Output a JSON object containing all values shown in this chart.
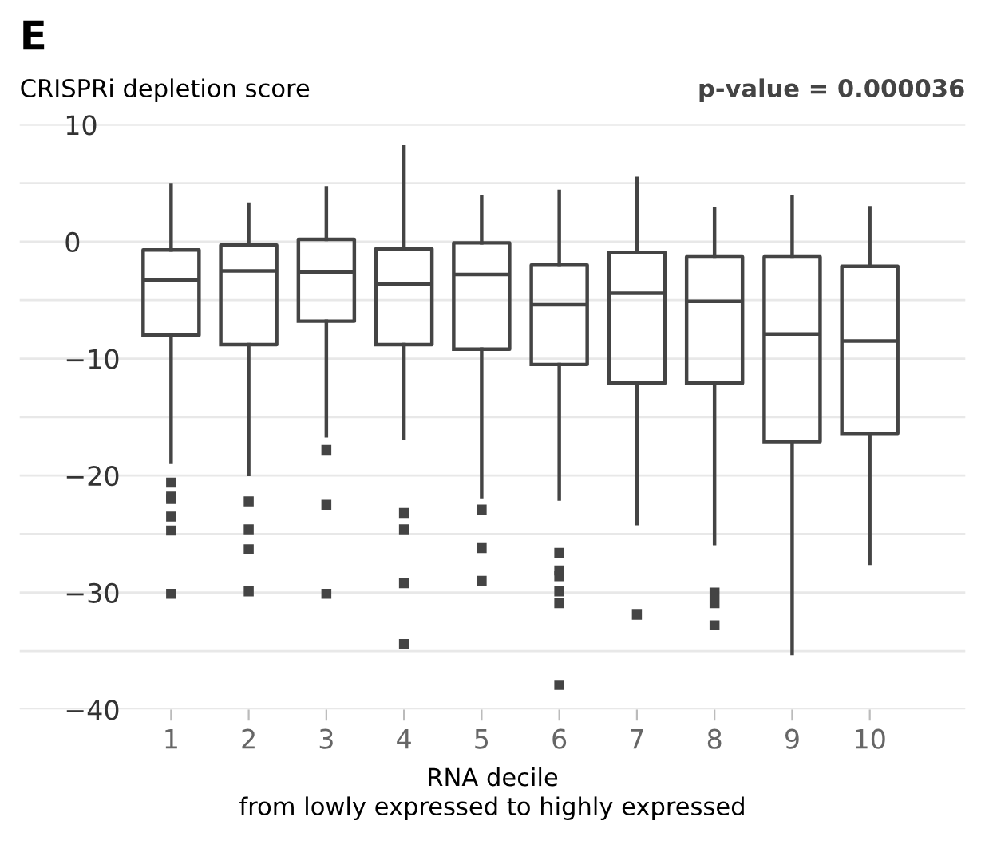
{
  "chart_data": {
    "type": "box",
    "title": "E",
    "ylabel": "CRISPRi depletion score",
    "xlabel": "RNA decile\nfrom lowly expressed to highly expressed",
    "annotations": [
      "p-value = 0.000036"
    ],
    "categories": [
      "1",
      "2",
      "3",
      "4",
      "5",
      "6",
      "7",
      "8",
      "9",
      "10"
    ],
    "boxes": [
      {
        "low": -18.8,
        "q1": -8.0,
        "median": -3.3,
        "q3": -0.7,
        "high": 4.8,
        "outliers": [
          -20.6,
          -21.8,
          -22.0,
          -23.5,
          -24.7,
          -30.1
        ]
      },
      {
        "low": -19.9,
        "q1": -8.8,
        "median": -2.5,
        "q3": -0.3,
        "high": 3.2,
        "outliers": [
          -22.2,
          -24.6,
          -26.3,
          -29.9
        ]
      },
      {
        "low": -16.6,
        "q1": -6.8,
        "median": -2.6,
        "q3": 0.2,
        "high": 4.6,
        "outliers": [
          -17.8,
          -22.5,
          -30.1
        ]
      },
      {
        "low": -16.8,
        "q1": -8.8,
        "median": -3.6,
        "q3": -0.6,
        "high": 8.1,
        "outliers": [
          -23.2,
          -24.6,
          -29.2,
          -34.4
        ]
      },
      {
        "low": -21.8,
        "q1": -9.2,
        "median": -2.8,
        "q3": -0.1,
        "high": 3.8,
        "outliers": [
          -22.9,
          -26.2,
          -29.0
        ]
      },
      {
        "low": -22.0,
        "q1": -10.5,
        "median": -5.4,
        "q3": -2.0,
        "high": 4.3,
        "outliers": [
          -26.6,
          -28.1,
          -28.6,
          -29.9,
          -30.9,
          -37.9
        ]
      },
      {
        "low": -24.1,
        "q1": -12.1,
        "median": -4.4,
        "q3": -0.9,
        "high": 5.4,
        "outliers": [
          -31.9
        ]
      },
      {
        "low": -25.8,
        "q1": -12.1,
        "median": -5.1,
        "q3": -1.3,
        "high": 2.8,
        "outliers": [
          -30.0,
          -30.9,
          -32.8
        ]
      },
      {
        "low": -35.2,
        "q1": -17.1,
        "median": -7.9,
        "q3": -1.3,
        "high": 3.8
      },
      {
        "low": -27.5,
        "q1": -16.4,
        "median": -8.5,
        "q3": -2.1,
        "high": 2.9
      }
    ],
    "color": "#444444",
    "marker": "square",
    "ylim": [
      -40,
      10
    ],
    "yticks": [
      -40,
      {
        "value": -35,
        "label": null
      },
      -30,
      {
        "value": -25,
        "label": null
      },
      -20,
      {
        "value": -15,
        "label": null
      },
      -10,
      {
        "value": -5,
        "label": null
      },
      0,
      {
        "value": 5,
        "label": null
      },
      10
    ],
    "grid": "y"
  }
}
